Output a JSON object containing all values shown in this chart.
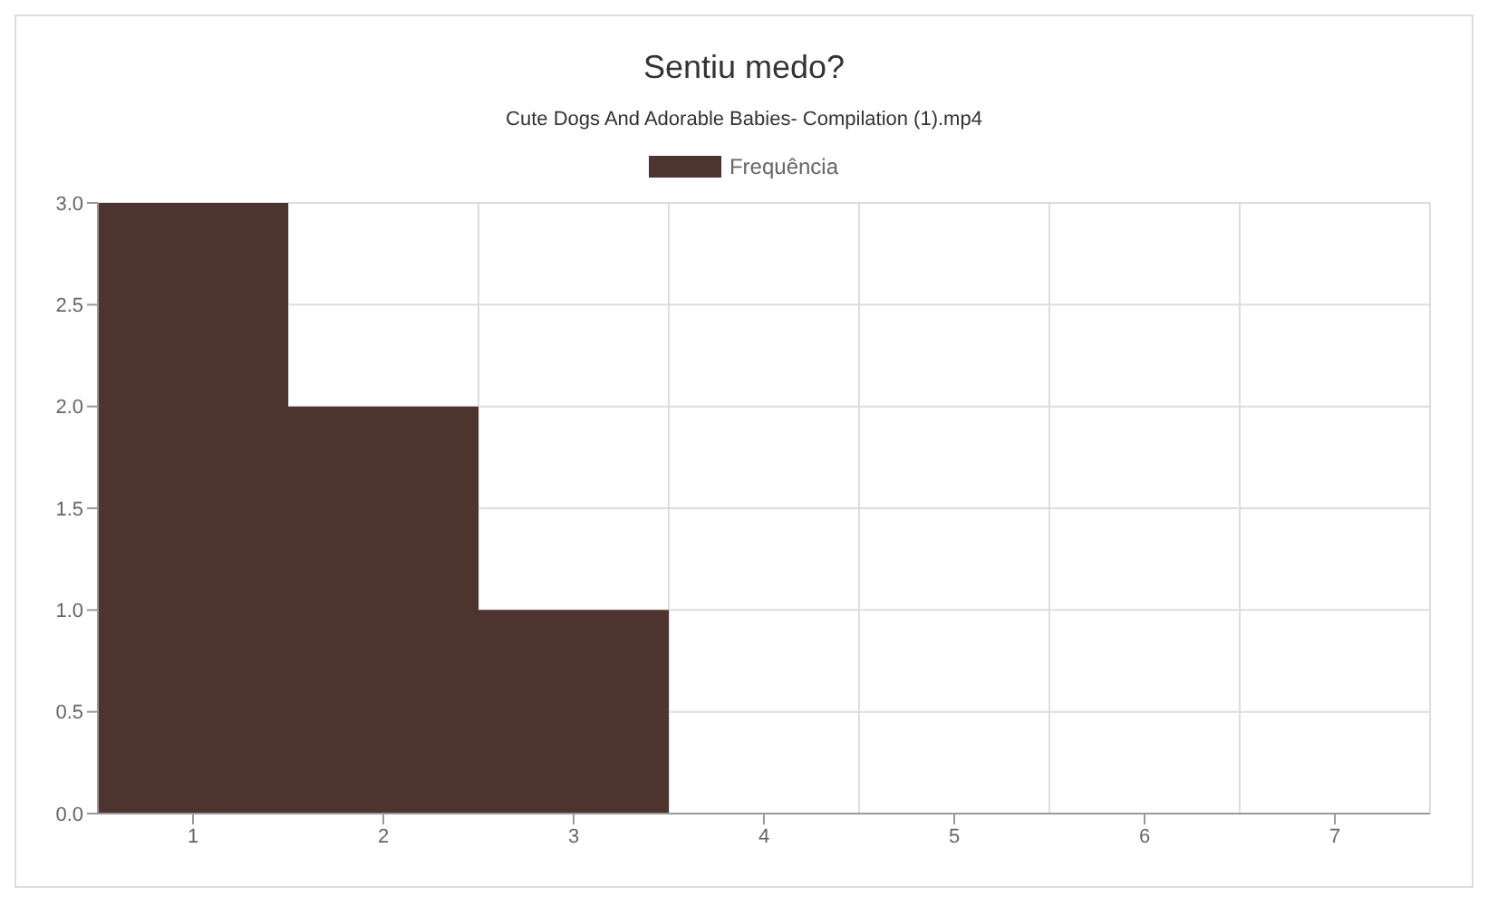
{
  "chart_data": {
    "type": "bar",
    "title": "Sentiu medo?",
    "subtitle": "Cute Dogs And Adorable Babies- Compilation (1).mp4",
    "categories": [
      "1",
      "2",
      "3",
      "4",
      "5",
      "6",
      "7"
    ],
    "series": [
      {
        "name": "Frequência",
        "color": "#4e342e",
        "values": [
          3,
          2,
          1,
          0,
          0,
          0,
          0
        ]
      }
    ],
    "ylim": [
      0,
      3
    ],
    "yticks": [
      {
        "value": 0,
        "label": "0.0"
      },
      0.5,
      {
        "value": 1,
        "label": "1.0"
      },
      1.5,
      {
        "value": 2,
        "label": "2.0"
      },
      2.5,
      {
        "value": 3,
        "label": "3.0"
      }
    ],
    "grid": true,
    "legend": "top"
  }
}
